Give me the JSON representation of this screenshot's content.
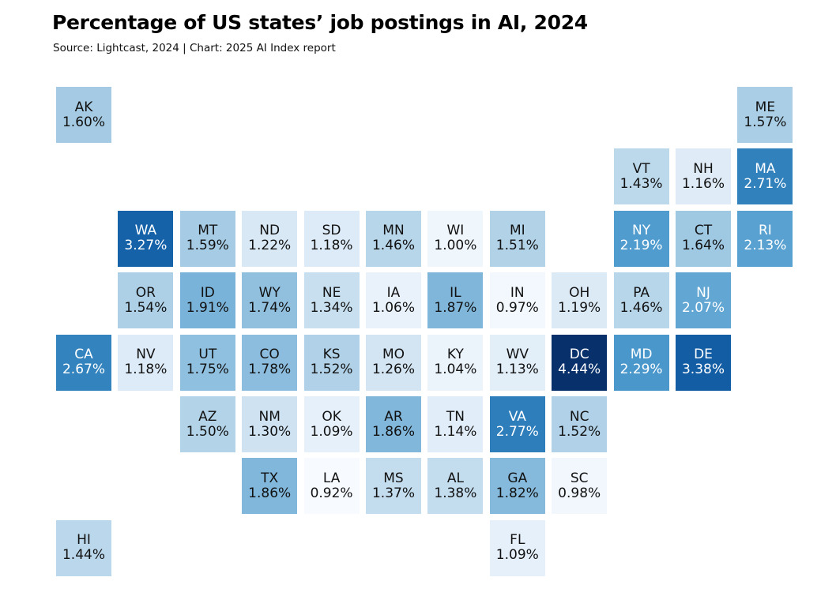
{
  "chart_data": {
    "type": "heatmap",
    "subtype": "tile-map",
    "title": "Percentage of US states’ job postings in AI, 2024",
    "subtitle": "Source: Lightcast, 2024 | Chart: 2025 AI Index report",
    "color_scale": {
      "low": "#f7fbff",
      "high": "#08306b",
      "scheme": "blues"
    },
    "states": [
      {
        "abbr": "AK",
        "value": 1.6,
        "label": "1.60%"
      },
      {
        "abbr": "ME",
        "value": 1.57,
        "label": "1.57%"
      },
      {
        "abbr": "VT",
        "value": 1.43,
        "label": "1.43%"
      },
      {
        "abbr": "NH",
        "value": 1.16,
        "label": "1.16%"
      },
      {
        "abbr": "MA",
        "value": 2.71,
        "label": "2.71%"
      },
      {
        "abbr": "WA",
        "value": 3.27,
        "label": "3.27%"
      },
      {
        "abbr": "MT",
        "value": 1.59,
        "label": "1.59%"
      },
      {
        "abbr": "ND",
        "value": 1.22,
        "label": "1.22%"
      },
      {
        "abbr": "SD",
        "value": 1.18,
        "label": "1.18%"
      },
      {
        "abbr": "MN",
        "value": 1.46,
        "label": "1.46%"
      },
      {
        "abbr": "WI",
        "value": 1.0,
        "label": "1.00%"
      },
      {
        "abbr": "MI",
        "value": 1.51,
        "label": "1.51%"
      },
      {
        "abbr": "NY",
        "value": 2.19,
        "label": "2.19%"
      },
      {
        "abbr": "CT",
        "value": 1.64,
        "label": "1.64%"
      },
      {
        "abbr": "RI",
        "value": 2.13,
        "label": "2.13%"
      },
      {
        "abbr": "OR",
        "value": 1.54,
        "label": "1.54%"
      },
      {
        "abbr": "ID",
        "value": 1.91,
        "label": "1.91%"
      },
      {
        "abbr": "WY",
        "value": 1.74,
        "label": "1.74%"
      },
      {
        "abbr": "NE",
        "value": 1.34,
        "label": "1.34%"
      },
      {
        "abbr": "IA",
        "value": 1.06,
        "label": "1.06%"
      },
      {
        "abbr": "IL",
        "value": 1.87,
        "label": "1.87%"
      },
      {
        "abbr": "IN",
        "value": 0.97,
        "label": "0.97%"
      },
      {
        "abbr": "OH",
        "value": 1.19,
        "label": "1.19%"
      },
      {
        "abbr": "PA",
        "value": 1.46,
        "label": "1.46%"
      },
      {
        "abbr": "NJ",
        "value": 2.07,
        "label": "2.07%"
      },
      {
        "abbr": "CA",
        "value": 2.67,
        "label": "2.67%"
      },
      {
        "abbr": "NV",
        "value": 1.18,
        "label": "1.18%"
      },
      {
        "abbr": "UT",
        "value": 1.75,
        "label": "1.75%"
      },
      {
        "abbr": "CO",
        "value": 1.78,
        "label": "1.78%"
      },
      {
        "abbr": "KS",
        "value": 1.52,
        "label": "1.52%"
      },
      {
        "abbr": "MO",
        "value": 1.26,
        "label": "1.26%"
      },
      {
        "abbr": "KY",
        "value": 1.04,
        "label": "1.04%"
      },
      {
        "abbr": "WV",
        "value": 1.13,
        "label": "1.13%"
      },
      {
        "abbr": "DC",
        "value": 4.44,
        "label": "4.44%"
      },
      {
        "abbr": "MD",
        "value": 2.29,
        "label": "2.29%"
      },
      {
        "abbr": "DE",
        "value": 3.38,
        "label": "3.38%"
      },
      {
        "abbr": "AZ",
        "value": 1.5,
        "label": "1.50%"
      },
      {
        "abbr": "NM",
        "value": 1.3,
        "label": "1.30%"
      },
      {
        "abbr": "OK",
        "value": 1.09,
        "label": "1.09%"
      },
      {
        "abbr": "AR",
        "value": 1.86,
        "label": "1.86%"
      },
      {
        "abbr": "TN",
        "value": 1.14,
        "label": "1.14%"
      },
      {
        "abbr": "VA",
        "value": 2.77,
        "label": "2.77%"
      },
      {
        "abbr": "NC",
        "value": 1.52,
        "label": "1.52%"
      },
      {
        "abbr": "TX",
        "value": 1.86,
        "label": "1.86%"
      },
      {
        "abbr": "LA",
        "value": 0.92,
        "label": "0.92%"
      },
      {
        "abbr": "MS",
        "value": 1.37,
        "label": "1.37%"
      },
      {
        "abbr": "AL",
        "value": 1.38,
        "label": "1.38%"
      },
      {
        "abbr": "GA",
        "value": 1.82,
        "label": "1.82%"
      },
      {
        "abbr": "SC",
        "value": 0.98,
        "label": "0.98%"
      },
      {
        "abbr": "HI",
        "value": 1.44,
        "label": "1.44%"
      },
      {
        "abbr": "FL",
        "value": 1.09,
        "label": "1.09%"
      }
    ]
  }
}
